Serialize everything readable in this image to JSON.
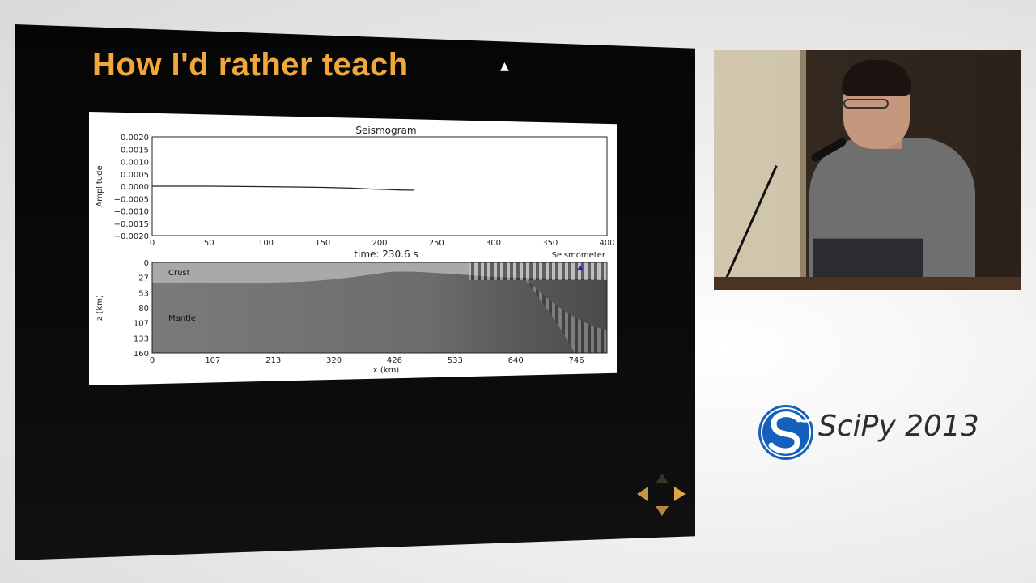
{
  "slide": {
    "title": "How I'd rather teach"
  },
  "figure": {
    "seismogram": {
      "title": "Seismogram",
      "ylabel": "Amplitude",
      "yticks": [
        "0.0020",
        "0.0015",
        "0.0010",
        "0.0005",
        "0.0000",
        "−0.0005",
        "−0.0010",
        "−0.0015",
        "−0.0020"
      ],
      "xticks": [
        "0",
        "50",
        "100",
        "150",
        "200",
        "250",
        "300",
        "350",
        "400"
      ]
    },
    "model": {
      "time_label": "time: 230.6 s",
      "station_label": "Seismometer",
      "crust_label": "Crust",
      "mantle_label": "Mantle",
      "ylabel": "z (km)",
      "xlabel": "x (km)",
      "yticks": [
        "0",
        "27",
        "53",
        "80",
        "107",
        "133",
        "160"
      ],
      "xticks": [
        "0",
        "107",
        "213",
        "320",
        "426",
        "533",
        "640",
        "746"
      ]
    }
  },
  "chart_data": [
    {
      "type": "line",
      "title": "Seismogram",
      "xlabel": "",
      "ylabel": "Amplitude",
      "xlim": [
        0,
        400
      ],
      "ylim": [
        -0.002,
        0.002
      ],
      "series": [
        {
          "x": [
            0,
            50,
            100,
            150,
            175,
            185,
            195,
            205,
            215,
            225,
            230.6
          ],
          "values": [
            0.0,
            0.0,
            -2e-05,
            -5e-05,
            -8e-05,
            -0.0001,
            -0.00012,
            -0.00013,
            -0.00015,
            -0.00016,
            -0.00016
          ]
        }
      ]
    }
  ],
  "navigation": {
    "icons": [
      "arrow-up-icon",
      "arrow-left-icon",
      "arrow-right-icon",
      "arrow-down-icon"
    ]
  },
  "branding": {
    "logo_text": "SciPy 2013",
    "logo_color": "#1560bd"
  },
  "colors": {
    "title": "#f0a83a",
    "nav_arrows": "#d9a048"
  }
}
